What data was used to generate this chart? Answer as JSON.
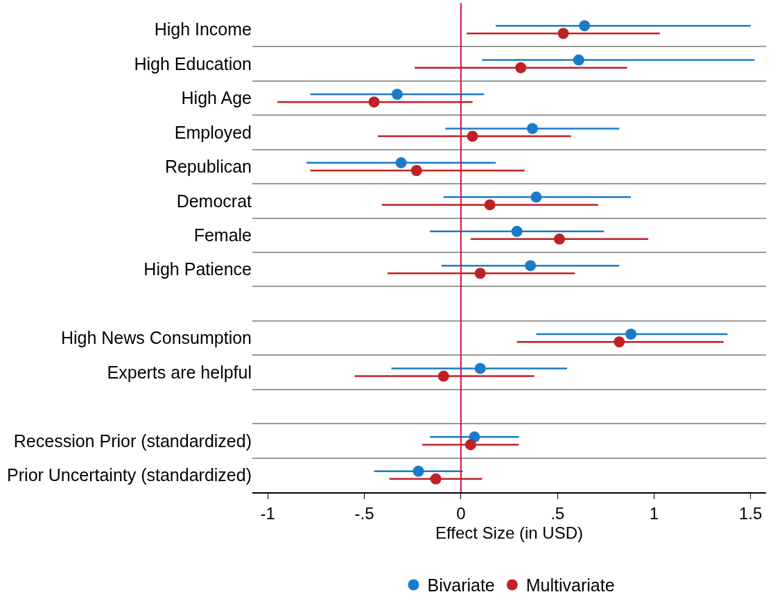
{
  "chart_data": {
    "type": "scatter",
    "orientation": "horizontal",
    "xlabel": "Effect Size (in USD)",
    "categories": [
      "High Income",
      "High Education",
      "High Age",
      "Employed",
      "Republican",
      "Democrat",
      "Female",
      "High Patience",
      null,
      "High News Consumption",
      "Experts are helpful",
      null,
      "Recession Prior (standardized)",
      "Prior Uncertainty (standardized)"
    ],
    "series": [
      {
        "name": "Bivariate",
        "color": "#1a7bc9",
        "values": [
          0.64,
          0.61,
          -0.33,
          0.37,
          -0.31,
          0.39,
          0.29,
          0.36,
          null,
          0.88,
          0.1,
          null,
          0.07,
          -0.22
        ],
        "errors": [
          [
            0.18,
            1.5
          ],
          [
            0.11,
            1.52
          ],
          [
            -0.78,
            0.12
          ],
          [
            -0.08,
            0.82
          ],
          [
            -0.8,
            0.18
          ],
          [
            -0.09,
            0.88
          ],
          [
            -0.16,
            0.74
          ],
          [
            -0.1,
            0.82
          ],
          null,
          [
            0.39,
            1.38
          ],
          [
            -0.36,
            0.55
          ],
          null,
          [
            -0.16,
            0.3
          ],
          [
            -0.45,
            0.01
          ]
        ]
      },
      {
        "name": "Multivariate",
        "color": "#bf2026",
        "values": [
          0.53,
          0.31,
          -0.45,
          0.06,
          -0.23,
          0.15,
          0.51,
          0.1,
          null,
          0.82,
          -0.09,
          null,
          0.05,
          -0.13
        ],
        "errors": [
          [
            0.03,
            1.03
          ],
          [
            -0.24,
            0.86
          ],
          [
            -0.95,
            0.06
          ],
          [
            -0.43,
            0.57
          ],
          [
            -0.78,
            0.33
          ],
          [
            -0.41,
            0.71
          ],
          [
            0.05,
            0.97
          ],
          [
            -0.38,
            0.59
          ],
          null,
          [
            0.29,
            1.36
          ],
          [
            -0.55,
            0.38
          ],
          null,
          [
            -0.2,
            0.3
          ],
          [
            -0.37,
            0.11
          ]
        ]
      }
    ],
    "xlim": [
      -1.08,
      1.58
    ],
    "xticks": [
      {
        "value": -1,
        "label": "-1"
      },
      {
        "value": -0.5,
        "label": "-.5"
      },
      {
        "value": 0,
        "label": "0"
      },
      {
        "value": 0.5,
        "label": ".5"
      },
      {
        "value": 1,
        "label": "1"
      },
      {
        "value": 1.5,
        "label": "1.5"
      }
    ],
    "ref_lines": [
      {
        "axis": "x",
        "value": 0,
        "color": "#d0103a"
      }
    ],
    "grid": "y",
    "legend": "bottom",
    "marker": "circle"
  }
}
